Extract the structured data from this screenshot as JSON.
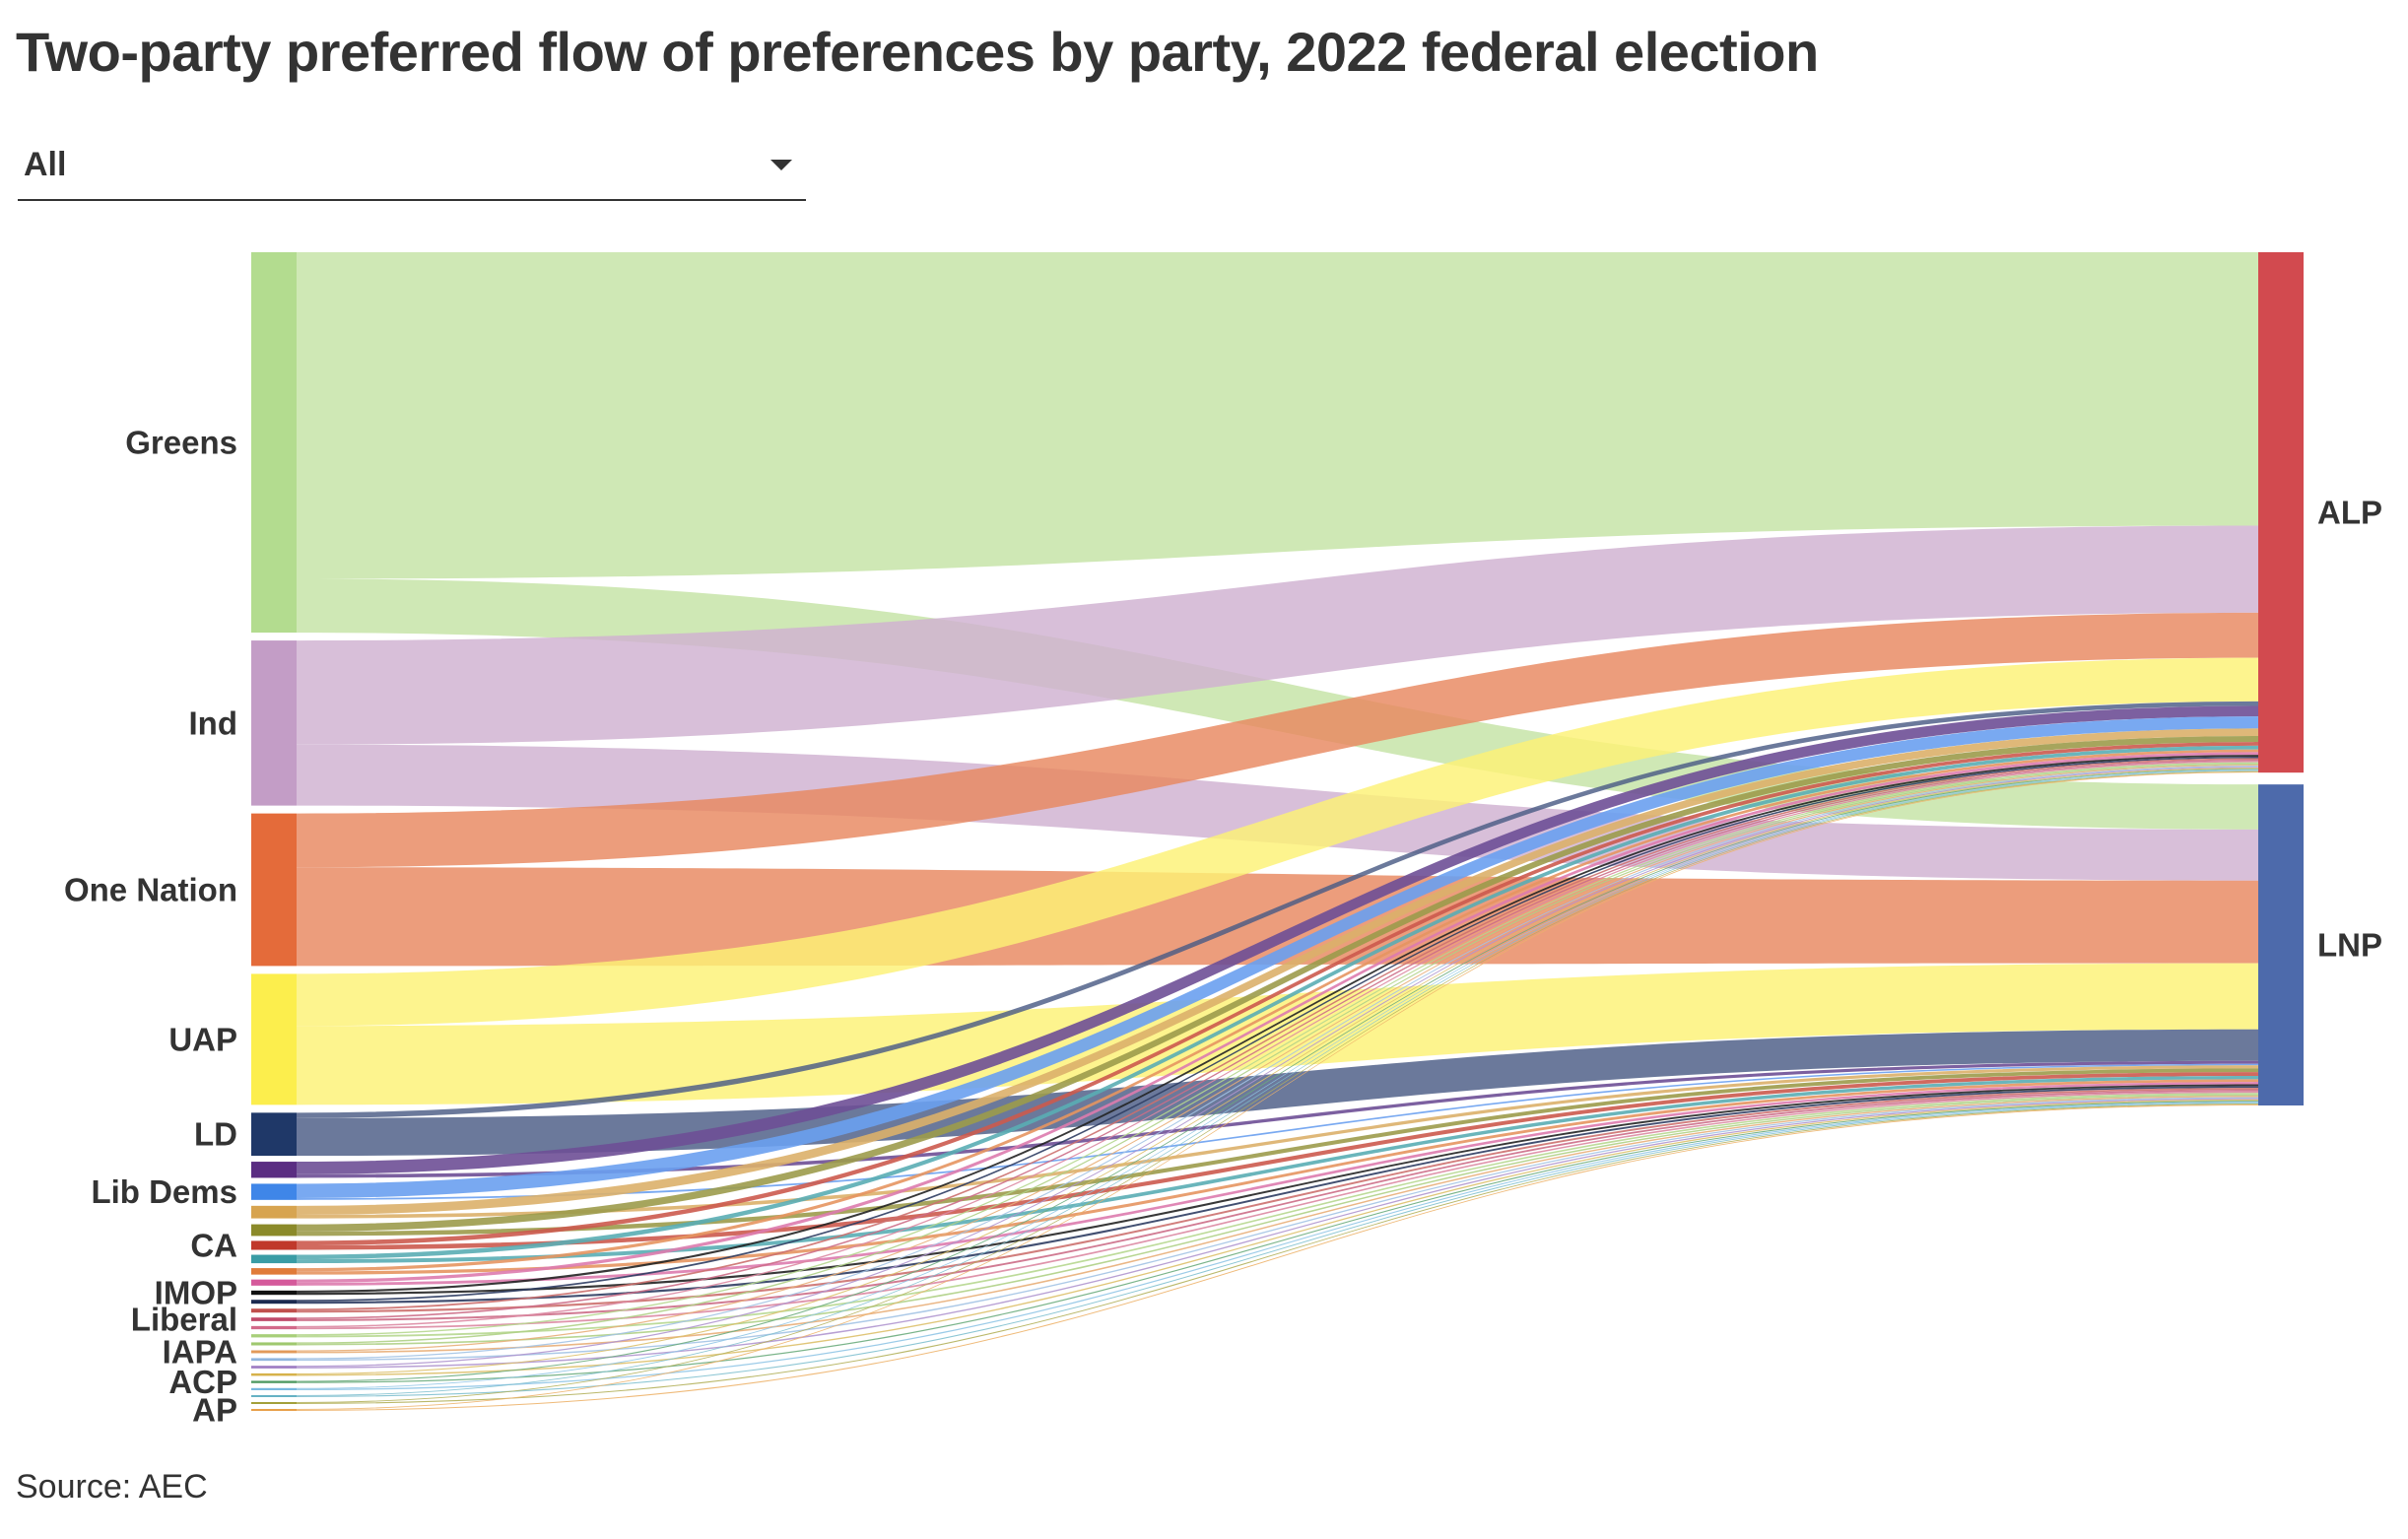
{
  "title": "Two-party preferred flow of preferences by party, 2022 federal election",
  "filter": {
    "selected": "All"
  },
  "source": "Source: AEC",
  "chart_data": {
    "type": "sankey",
    "units": "share of two-party preferred preference flows (relative, estimated)",
    "targets": [
      {
        "name": "ALP",
        "color": "#d24a4f"
      },
      {
        "name": "LNP",
        "color": "#4d6aab"
      }
    ],
    "sources": [
      {
        "name": "Greens",
        "label": "Greens",
        "color": "#b3dc8f",
        "link_color": "#c4e3a5",
        "flows": [
          182,
          30
        ]
      },
      {
        "name": "Ind",
        "label": "Ind",
        "color": "#c39dc6",
        "link_color": "#cfb1d1",
        "flows": [
          58,
          34
        ]
      },
      {
        "name": "One Nation",
        "label": "One Nation",
        "color": "#e46b3a",
        "link_color": "#e8875f",
        "flows": [
          30,
          55
        ]
      },
      {
        "name": "UAP",
        "label": "UAP",
        "color": "#fcee4d",
        "link_color": "#fdf275",
        "flows": [
          29,
          44
        ]
      },
      {
        "name": "LD",
        "label": "LD",
        "color": "#1f3868",
        "link_color": "#4a5b85",
        "flows": [
          3,
          21
        ]
      },
      {
        "name": "p6",
        "label": "",
        "color": "#5a2d82",
        "link_color": "#6e4f96",
        "flows": [
          7,
          2
        ]
      },
      {
        "name": "Lib Dems",
        "label": "Lib Dems",
        "color": "#3f86e8",
        "link_color": "#6aa0ef",
        "flows": [
          8,
          1
        ]
      },
      {
        "name": "p8",
        "label": "",
        "color": "#d7a450",
        "link_color": "#dcb06a",
        "flows": [
          5,
          2
        ]
      },
      {
        "name": "p9",
        "label": "",
        "color": "#8b8a2a",
        "link_color": "#9c9b4b",
        "flows": [
          4,
          2.5
        ]
      },
      {
        "name": "CA",
        "label": "CA",
        "color": "#c0392b",
        "link_color": "#cc5a4e",
        "flows": [
          2.5,
          2.5
        ]
      },
      {
        "name": "p11",
        "label": "",
        "color": "#3a9ca5",
        "link_color": "#5aadb4",
        "flows": [
          2.5,
          2.2
        ]
      },
      {
        "name": "p12",
        "label": "",
        "color": "#e07b39",
        "link_color": "#e69560",
        "flows": [
          1.8,
          1.8
        ]
      },
      {
        "name": "p13",
        "label": "",
        "color": "#d55a9b",
        "link_color": "#dd7bae",
        "flows": [
          1.8,
          1.6
        ]
      },
      {
        "name": "IMOP",
        "label": "IMOP",
        "color": "#111111",
        "link_color": "#222222",
        "flows": [
          1.2,
          1.2
        ]
      },
      {
        "name": "p15",
        "label": "",
        "color": "#1b2a50",
        "link_color": "#2e3c62",
        "flows": [
          1,
          1.2
        ]
      },
      {
        "name": "p16",
        "label": "",
        "color": "#c0504d",
        "link_color": "#cc706e",
        "flows": [
          1,
          1.2
        ]
      },
      {
        "name": "Liberal",
        "label": "Liberal",
        "color": "#c04a6a",
        "link_color": "#cc6d87",
        "flows": [
          0.9,
          1.1
        ]
      },
      {
        "name": "p18",
        "label": "",
        "color": "#d36a8a",
        "link_color": "#dc88a2",
        "flows": [
          0.8,
          1
        ]
      },
      {
        "name": "p19",
        "label": "",
        "color": "#a8cf7a",
        "link_color": "#b6d78f",
        "flows": [
          0.8,
          1
        ]
      },
      {
        "name": "p20",
        "label": "",
        "color": "#9fc86f",
        "link_color": "#afd086",
        "flows": [
          0.8,
          0.9
        ]
      },
      {
        "name": "IAPA",
        "label": "IAPA",
        "color": "#e29a5a",
        "link_color": "#e8ae78",
        "flows": [
          0.7,
          0.9
        ]
      },
      {
        "name": "p22",
        "label": "",
        "color": "#8fb5de",
        "link_color": "#a3c3e4",
        "flows": [
          0.7,
          0.8
        ]
      },
      {
        "name": "p23",
        "label": "",
        "color": "#9f7fc4",
        "link_color": "#b096cf",
        "flows": [
          0.7,
          0.8
        ]
      },
      {
        "name": "p24",
        "label": "",
        "color": "#d6b24a",
        "link_color": "#ddc06a",
        "flows": [
          0.6,
          0.8
        ]
      },
      {
        "name": "ACP",
        "label": "ACP",
        "color": "#4f9a62",
        "link_color": "#6cac7d",
        "flows": [
          0.6,
          0.7
        ]
      },
      {
        "name": "p26",
        "label": "",
        "color": "#78b8e0",
        "link_color": "#90c5e6",
        "flows": [
          0.5,
          0.7
        ]
      },
      {
        "name": "p27",
        "label": "",
        "color": "#66b2c4",
        "link_color": "#80c0cf",
        "flows": [
          0.5,
          0.6
        ]
      },
      {
        "name": "p28",
        "label": "",
        "color": "#a3a03a",
        "link_color": "#b3b05a",
        "flows": [
          0.5,
          0.6
        ]
      },
      {
        "name": "AP",
        "label": "AP",
        "color": "#e8a04a",
        "link_color": "#edb26a",
        "flows": [
          0.5,
          0.6
        ]
      }
    ]
  }
}
